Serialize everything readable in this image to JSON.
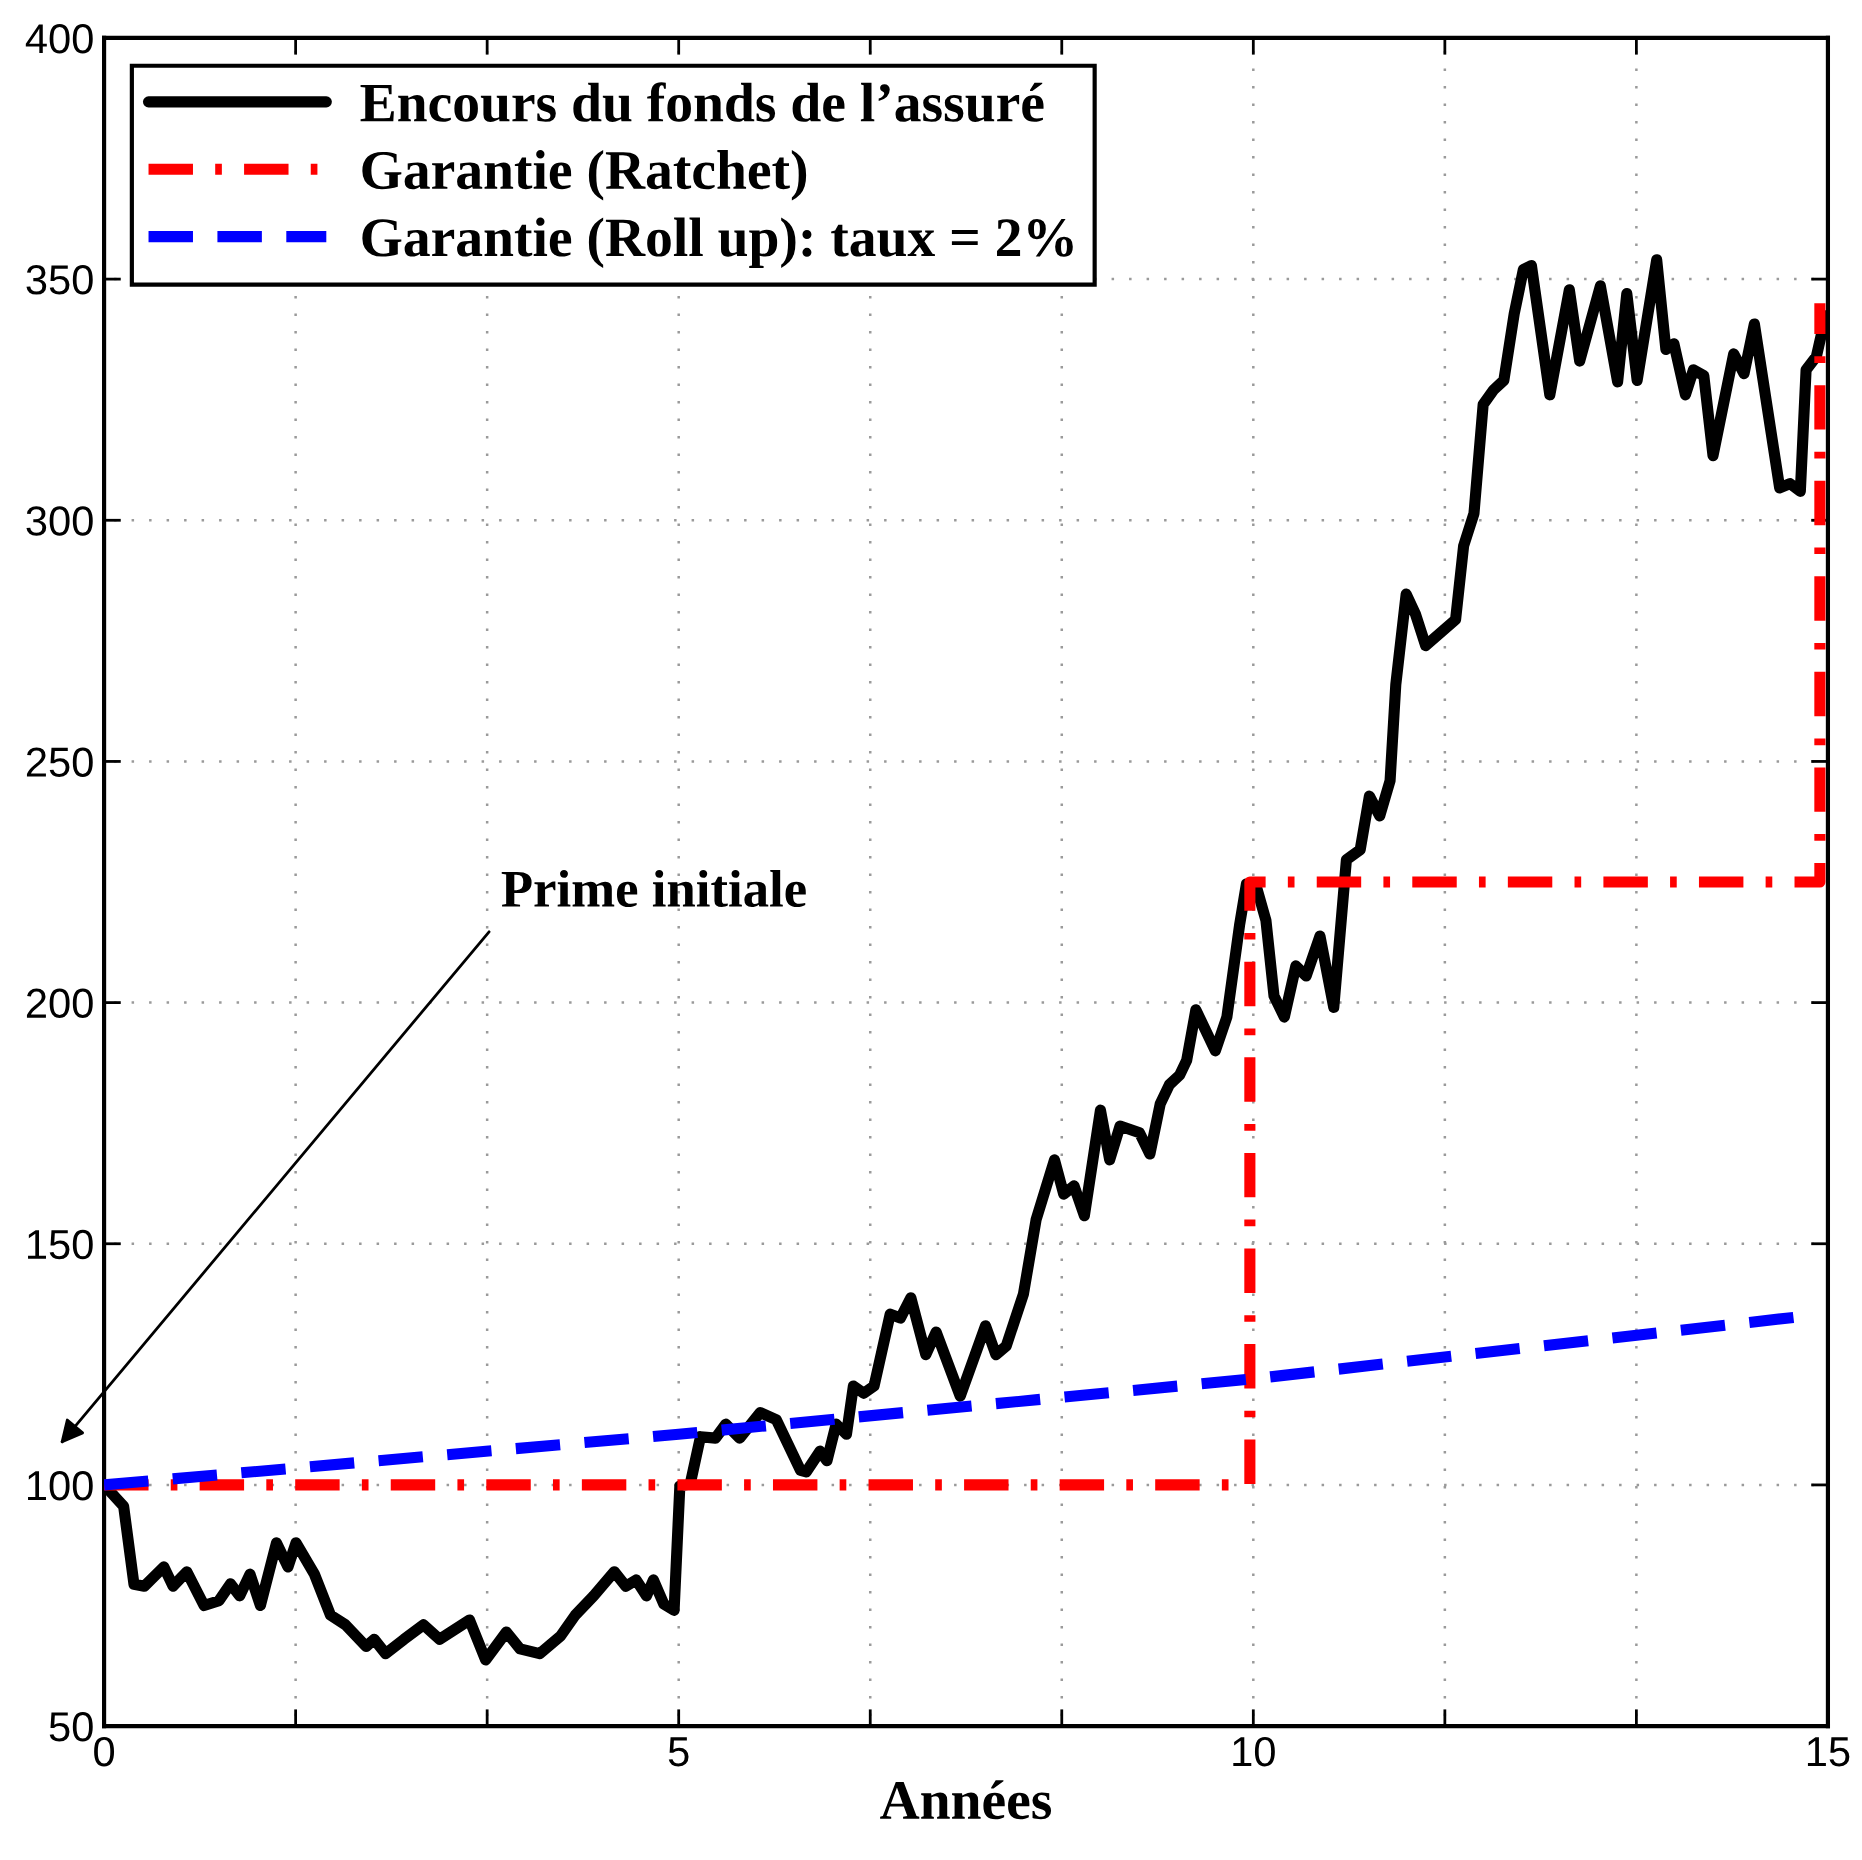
{
  "chart_data": {
    "type": "line",
    "xlabel": "Années",
    "xlim": [
      0,
      15
    ],
    "ylim": [
      50,
      400
    ],
    "xticks": [
      0,
      {
        "value": 1.6667,
        "label": null
      },
      {
        "value": 3.3333,
        "label": null
      },
      5,
      {
        "value": 6.6667,
        "label": null
      },
      {
        "value": 8.3333,
        "label": null
      },
      10,
      {
        "value": 11.6667,
        "label": null
      },
      {
        "value": 13.3333,
        "label": null
      },
      15
    ],
    "yticks": [
      50,
      100,
      150,
      200,
      250,
      300,
      350,
      400
    ],
    "grid": true,
    "legend": "top left",
    "annotations": [
      "Prime initiale"
    ],
    "series": [
      {
        "name": "Encours du fonds de l’assuré",
        "color": "#000000",
        "line_style": "solid",
        "x": [
          0,
          0.17,
          0.26,
          0.35,
          0.52,
          0.6,
          0.72,
          0.87,
          1.0,
          1.1,
          1.18,
          1.27,
          1.36,
          1.5,
          1.6,
          1.67,
          1.83,
          1.97,
          2.1,
          2.28,
          2.35,
          2.45,
          2.61,
          2.78,
          2.92,
          3.18,
          3.32,
          3.5,
          3.62,
          3.79,
          3.97,
          4.1,
          4.26,
          4.44,
          4.54,
          4.63,
          4.72,
          4.78,
          4.87,
          4.96,
          5.01,
          5.1,
          5.19,
          5.32,
          5.41,
          5.53,
          5.71,
          5.85,
          6.06,
          6.11,
          6.23,
          6.29,
          6.37,
          6.46,
          6.52,
          6.61,
          6.7,
          6.84,
          6.93,
          7.02,
          7.15,
          7.24,
          7.45,
          7.67,
          7.76,
          7.85,
          8.0,
          8.11,
          8.27,
          8.35,
          8.44,
          8.53,
          8.67,
          8.75,
          8.84,
          9.01,
          9.1,
          9.19,
          9.27,
          9.36,
          9.42,
          9.5,
          9.67,
          9.77,
          9.88,
          9.94,
          10.02,
          10.11,
          10.18,
          10.27,
          10.37,
          10.46,
          10.58,
          10.7,
          10.81,
          10.93,
          11.01,
          11.1,
          11.19,
          11.24,
          11.33,
          11.41,
          11.5,
          11.62,
          11.76,
          11.83,
          11.92,
          12.0,
          12.09,
          12.18,
          12.27,
          12.35,
          12.42,
          12.58,
          12.75,
          12.84,
          13.02,
          13.17,
          13.25,
          13.34,
          13.51,
          13.59,
          13.66,
          13.76,
          13.83,
          13.92,
          14.0,
          14.18,
          14.27,
          14.36,
          14.58,
          14.67,
          14.76,
          14.81,
          14.9,
          14.98
        ],
        "values": [
          100,
          95.6,
          79.4,
          79,
          83,
          79,
          82,
          75,
          76,
          79.5,
          77,
          81.5,
          75,
          88,
          83,
          88,
          81.5,
          73,
          71,
          66.5,
          68,
          65,
          68,
          71,
          68,
          72,
          63.7,
          69.5,
          66,
          65,
          68.6,
          73,
          77,
          82,
          79,
          80.3,
          77,
          80.3,
          75.3,
          74,
          99.8,
          100.2,
          110,
          109.7,
          112.6,
          109.7,
          115,
          113.5,
          103,
          102.7,
          107,
          105,
          112.6,
          110.5,
          120.5,
          119,
          120.5,
          135.4,
          134.6,
          138.8,
          127,
          131.7,
          118.4,
          133,
          127,
          128.8,
          139.6,
          155,
          167.4,
          160.3,
          162,
          155.8,
          177.7,
          167.4,
          174.4,
          173,
          168.6,
          179,
          183,
          185,
          188,
          198.5,
          190,
          197,
          216,
          224.6,
          224.6,
          217,
          201.4,
          197,
          207.6,
          205.5,
          213.8,
          199,
          229.6,
          231.7,
          242.8,
          238.7,
          246,
          266,
          284.7,
          280.6,
          274,
          276.5,
          279.4,
          294.7,
          301.4,
          324,
          327,
          329,
          342.8,
          352,
          352.8,
          326,
          347.8,
          333,
          348.6,
          328.7,
          347,
          329,
          354,
          335.4,
          336.6,
          326,
          331.2,
          330,
          313.4,
          334.5,
          330.4,
          340.7,
          306.7,
          307.6,
          306,
          331.2,
          334,
          342.4
        ]
      },
      {
        "name": "Garantie (Ratchet)",
        "color": "#ff0000",
        "line_style": "dashdot",
        "x": [
          0,
          9.97,
          9.97,
          14.93,
          14.93
        ],
        "values": [
          100,
          100,
          225,
          225,
          345
        ]
      },
      {
        "name": "Garantie (Roll up): taux = 2%",
        "color": "#0000ff",
        "line_style": "dashed",
        "x": [
          0,
          5,
          10,
          14.8
        ],
        "values": [
          100,
          110.5,
          122,
          135
        ]
      }
    ]
  }
}
